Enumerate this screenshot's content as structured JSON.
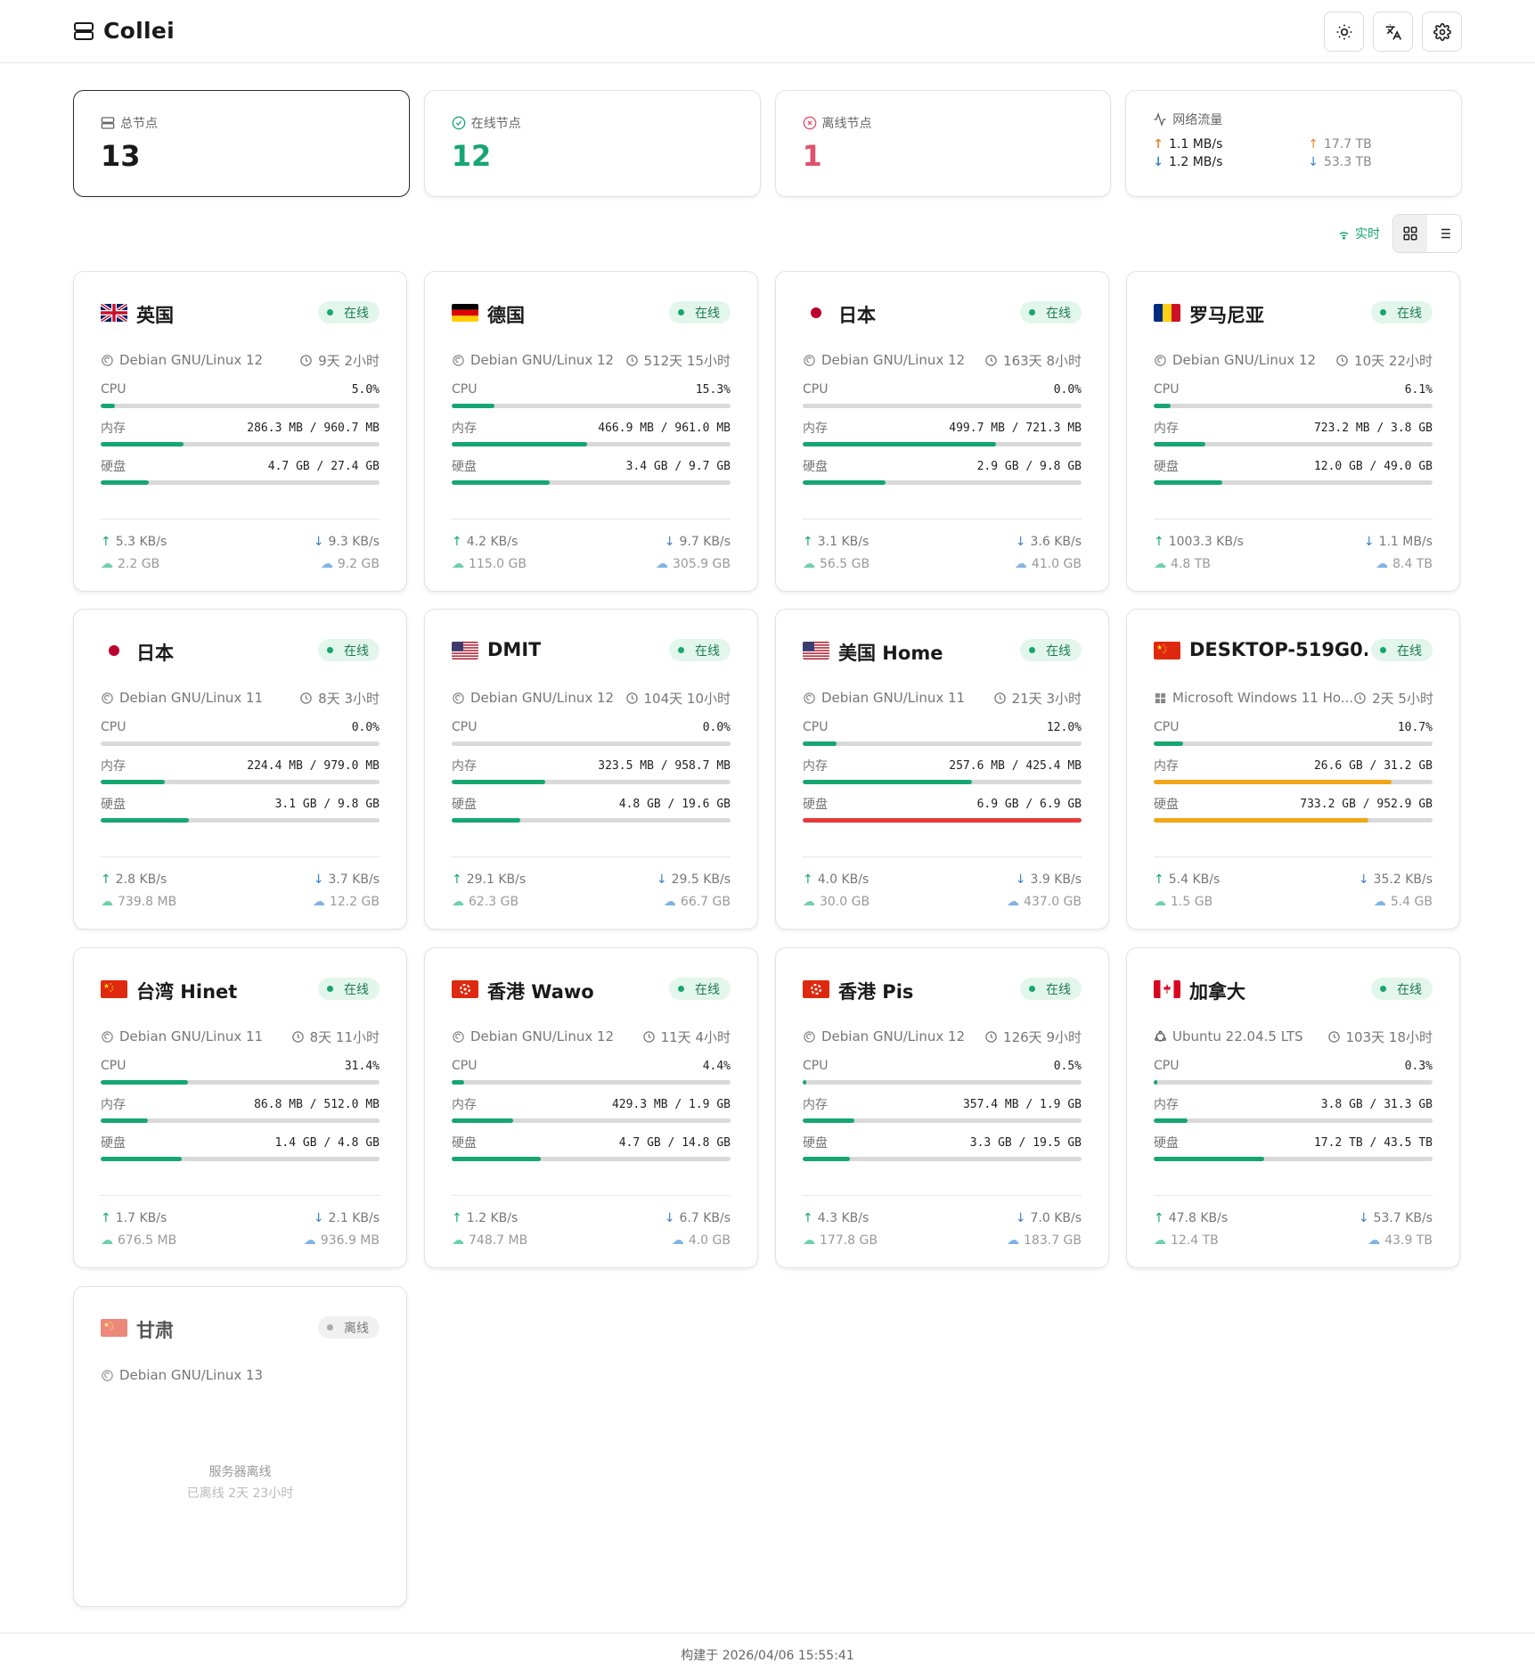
{
  "header": {
    "brand": "Collei"
  },
  "stats": {
    "total": {
      "label": "总节点",
      "value": "13"
    },
    "online": {
      "label": "在线节点",
      "value": "12"
    },
    "offline": {
      "label": "离线节点",
      "value": "1"
    },
    "traffic": {
      "label": "网络流量",
      "up_speed": "1.1 MB/s",
      "down_speed": "1.2 MB/s",
      "up_total": "17.7 TB",
      "down_total": "53.3 TB"
    }
  },
  "toolbar": {
    "realtime": "实时"
  },
  "labels": {
    "cpu": "CPU",
    "mem": "内存",
    "disk": "硬盘"
  },
  "nodes": [
    {
      "name": "英国",
      "flag": "gb",
      "status": "在线",
      "os": "Debian GNU/Linux 12",
      "uptime": "9天 2小时",
      "cpu": "5.0%",
      "cpu_pct": 5.0,
      "mem": "286.3 MB / 960.7 MB",
      "mem_pct": 29.8,
      "disk": "4.7 GB / 27.4 GB",
      "disk_pct": 17.2,
      "up_speed": "5.3 KB/s",
      "down_speed": "9.3 KB/s",
      "up_total": "2.2 GB",
      "down_total": "9.2 GB"
    },
    {
      "name": "德国",
      "flag": "de",
      "status": "在线",
      "os": "Debian GNU/Linux 12",
      "uptime": "512天 15小时",
      "cpu": "15.3%",
      "cpu_pct": 15.3,
      "mem": "466.9 MB / 961.0 MB",
      "mem_pct": 48.6,
      "disk": "3.4 GB / 9.7 GB",
      "disk_pct": 35.1,
      "up_speed": "4.2 KB/s",
      "down_speed": "9.7 KB/s",
      "up_total": "115.0 GB",
      "down_total": "305.9 GB"
    },
    {
      "name": "日本",
      "flag": "jp",
      "status": "在线",
      "os": "Debian GNU/Linux 12",
      "uptime": "163天 8小时",
      "cpu": "0.0%",
      "cpu_pct": 0.0,
      "mem": "499.7 MB / 721.3 MB",
      "mem_pct": 69.3,
      "disk": "2.9 GB / 9.8 GB",
      "disk_pct": 29.6,
      "up_speed": "3.1 KB/s",
      "down_speed": "3.6 KB/s",
      "up_total": "56.5 GB",
      "down_total": "41.0 GB"
    },
    {
      "name": "罗马尼亚",
      "flag": "ro",
      "status": "在线",
      "os": "Debian GNU/Linux 12",
      "uptime": "10天 22小时",
      "cpu": "6.1%",
      "cpu_pct": 6.1,
      "mem": "723.2 MB / 3.8 GB",
      "mem_pct": 18.6,
      "disk": "12.0 GB / 49.0 GB",
      "disk_pct": 24.5,
      "up_speed": "1003.3 KB/s",
      "down_speed": "1.1 MB/s",
      "up_total": "4.8 TB",
      "down_total": "8.4 TB"
    },
    {
      "name": "日本",
      "flag": "jp",
      "status": "在线",
      "os": "Debian GNU/Linux 11",
      "uptime": "8天 3小时",
      "cpu": "0.0%",
      "cpu_pct": 0.0,
      "mem": "224.4 MB / 979.0 MB",
      "mem_pct": 22.9,
      "disk": "3.1 GB / 9.8 GB",
      "disk_pct": 31.6,
      "up_speed": "2.8 KB/s",
      "down_speed": "3.7 KB/s",
      "up_total": "739.8 MB",
      "down_total": "12.2 GB"
    },
    {
      "name": "DMIT",
      "flag": "us",
      "status": "在线",
      "os": "Debian GNU/Linux 12",
      "uptime": "104天 10小时",
      "cpu": "0.0%",
      "cpu_pct": 0.0,
      "mem": "323.5 MB / 958.7 MB",
      "mem_pct": 33.7,
      "disk": "4.8 GB / 19.6 GB",
      "disk_pct": 24.5,
      "up_speed": "29.1 KB/s",
      "down_speed": "29.5 KB/s",
      "up_total": "62.3 GB",
      "down_total": "66.7 GB"
    },
    {
      "name": "美国 Home",
      "flag": "us",
      "status": "在线",
      "os": "Debian GNU/Linux 11",
      "uptime": "21天 3小时",
      "cpu": "12.0%",
      "cpu_pct": 12.0,
      "mem": "257.6 MB / 425.4 MB",
      "mem_pct": 60.6,
      "disk": "6.9 GB / 6.9 GB",
      "disk_pct": 100,
      "up_speed": "4.0 KB/s",
      "down_speed": "3.9 KB/s",
      "up_total": "30.0 GB",
      "down_total": "437.0 GB"
    },
    {
      "name": "DESKTOP-519G0...",
      "flag": "cn",
      "status": "在线",
      "os": "Microsoft Windows 11 Ho...",
      "os_icon": "windows",
      "uptime": "2天 5小时",
      "cpu": "10.7%",
      "cpu_pct": 10.7,
      "mem": "26.6 GB / 31.2 GB",
      "mem_pct": 85.3,
      "disk": "733.2 GB / 952.9 GB",
      "disk_pct": 76.9,
      "up_speed": "5.4 KB/s",
      "down_speed": "35.2 KB/s",
      "up_total": "1.5 GB",
      "down_total": "5.4 GB"
    },
    {
      "name": "台湾 Hinet",
      "flag": "cn",
      "status": "在线",
      "os": "Debian GNU/Linux 11",
      "uptime": "8天 11小时",
      "cpu": "31.4%",
      "cpu_pct": 31.4,
      "mem": "86.8 MB / 512.0 MB",
      "mem_pct": 17.0,
      "disk": "1.4 GB / 4.8 GB",
      "disk_pct": 29.2,
      "up_speed": "1.7 KB/s",
      "down_speed": "2.1 KB/s",
      "up_total": "676.5 MB",
      "down_total": "936.9 MB"
    },
    {
      "name": "香港 Wawo",
      "flag": "hk",
      "status": "在线",
      "os": "Debian GNU/Linux 12",
      "uptime": "11天 4小时",
      "cpu": "4.4%",
      "cpu_pct": 4.4,
      "mem": "429.3 MB / 1.9 GB",
      "mem_pct": 22.1,
      "disk": "4.7 GB / 14.8 GB",
      "disk_pct": 31.8,
      "up_speed": "1.2 KB/s",
      "down_speed": "6.7 KB/s",
      "up_total": "748.7 MB",
      "down_total": "4.0 GB"
    },
    {
      "name": "香港 Pis",
      "flag": "hk",
      "status": "在线",
      "os": "Debian GNU/Linux 12",
      "uptime": "126天 9小时",
      "cpu": "0.5%",
      "cpu_pct": 0.5,
      "mem": "357.4 MB / 1.9 GB",
      "mem_pct": 18.4,
      "disk": "3.3 GB / 19.5 GB",
      "disk_pct": 16.9,
      "up_speed": "4.3 KB/s",
      "down_speed": "7.0 KB/s",
      "up_total": "177.8 GB",
      "down_total": "183.7 GB"
    },
    {
      "name": "加拿大",
      "flag": "ca",
      "status": "在线",
      "os": "Ubuntu 22.04.5 LTS",
      "os_icon": "ubuntu",
      "uptime": "103天 18小时",
      "cpu": "0.3%",
      "cpu_pct": 0.3,
      "mem": "3.8 GB / 31.3 GB",
      "mem_pct": 12.1,
      "disk": "17.2 TB / 43.5 TB",
      "disk_pct": 39.5,
      "up_speed": "47.8 KB/s",
      "down_speed": "53.7 KB/s",
      "up_total": "12.4 TB",
      "down_total": "43.9 TB"
    }
  ],
  "offline_node": {
    "name": "甘肃",
    "flag": "cn",
    "status": "离线",
    "os": "Debian GNU/Linux 13",
    "message": "服务器离线",
    "since": "已离线 2天 23小时"
  },
  "footer": {
    "build": "构建于 2026/04/06 15:55:41"
  }
}
